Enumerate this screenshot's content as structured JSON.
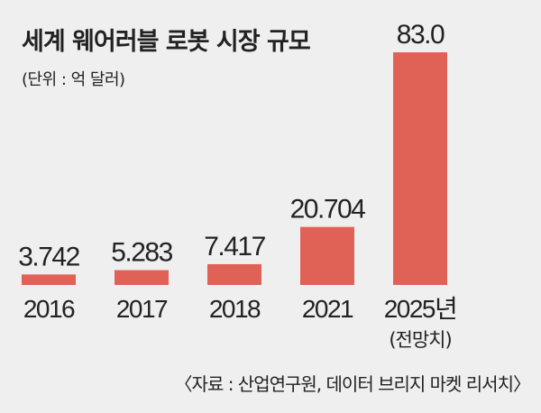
{
  "chart_data": {
    "type": "bar",
    "title": "세계 웨어러블 로봇 시장 규모",
    "subtitle": "(단위 : 억 달러)",
    "categories": [
      "2016",
      "2017",
      "2018",
      "2021",
      "2025년"
    ],
    "category_notes": [
      "",
      "",
      "",
      "",
      "(전망치)"
    ],
    "values": [
      3.742,
      5.283,
      7.417,
      20.704,
      83.0
    ],
    "value_labels": [
      "3.742",
      "5.283",
      "7.417",
      "20.704",
      "83.0"
    ],
    "xlabel": "",
    "ylabel": "",
    "ylim": [
      0,
      83.0
    ],
    "grid": false,
    "source": "〈자료 : 산업연구원, 데이터 브리지 마켓 리서치〉",
    "colors": {
      "bar": "#e06256",
      "background": "#efefef"
    }
  }
}
